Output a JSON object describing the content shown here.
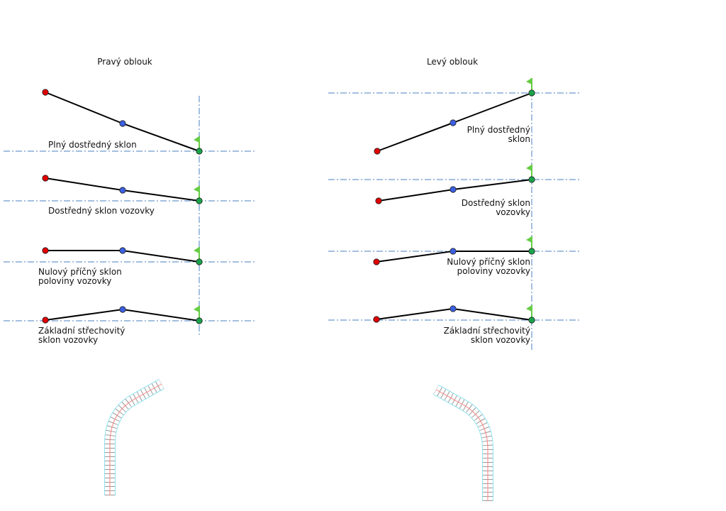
{
  "left_panel": {
    "title": "Pravý oblouk",
    "rows": [
      {
        "label": [
          "Plný dostředný sklon"
        ]
      },
      {
        "label": [
          "Dostředný sklon vozovky"
        ]
      },
      {
        "label": [
          "Nulový příčný sklon",
          "poloviny vozovky"
        ]
      },
      {
        "label": [
          "Základní střechovitý",
          "sklon vozovky"
        ]
      }
    ]
  },
  "right_panel": {
    "title": "Levý oblouk",
    "rows": [
      {
        "label": [
          "Plný dostředný",
          "sklon"
        ]
      },
      {
        "label": [
          "Dostředný sklon",
          "vozovky"
        ]
      },
      {
        "label": [
          "Nulový příčný sklon",
          "poloviny vozovky"
        ]
      },
      {
        "label": [
          "Základní střechovitý",
          "sklon vozovky"
        ]
      }
    ]
  },
  "colors": {
    "outer_edge": "#e00000",
    "center": "#3b5fe0",
    "inner_edge": "#1aa34a",
    "flag": "#66cc44",
    "axis": "#4a7fc1",
    "road_outline": "#8fe3f0",
    "road_centerline": "#ff8080"
  }
}
